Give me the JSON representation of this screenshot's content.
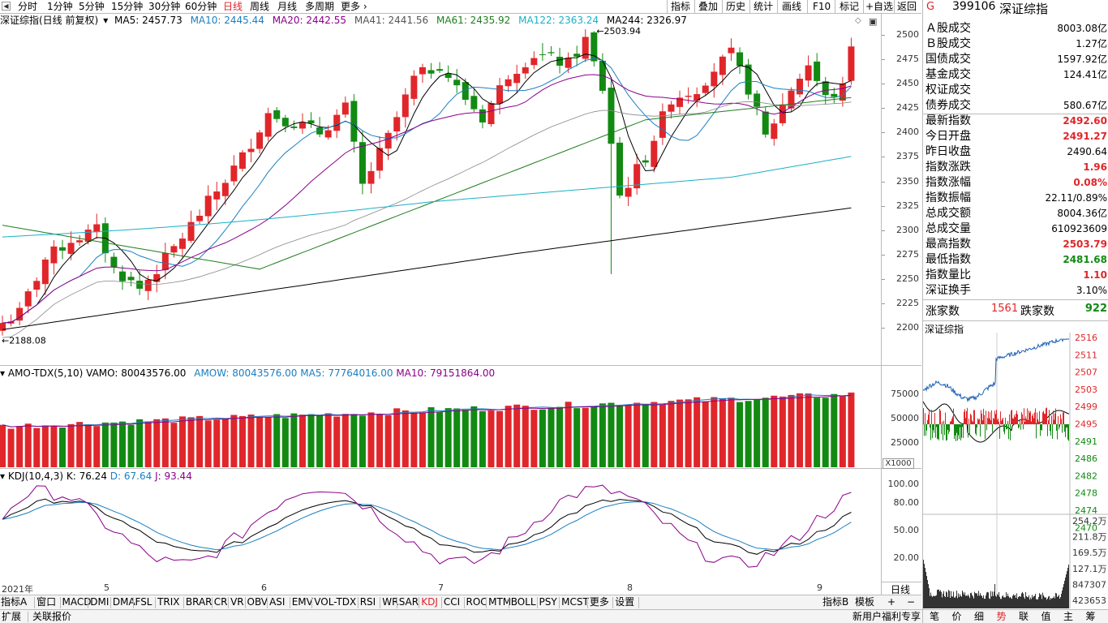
{
  "toolbar": {
    "periods": [
      "分时",
      "1分钟",
      "5分钟",
      "15分钟",
      "30分钟",
      "60分钟",
      "日线",
      "周线",
      "月线",
      "多周期",
      "更多"
    ],
    "active_period": "日线",
    "right_buttons": [
      "指标",
      "叠加",
      "历史",
      "统计",
      "画线",
      "F10",
      "标记",
      "+自选",
      "返回"
    ]
  },
  "legend": {
    "title": "深证综指(日线 前复权)",
    "ma5": "MA5: 2457.73",
    "ma10": "MA10: 2445.44",
    "ma20": "MA20: 2442.55",
    "ma41": "MA41: 2441.56",
    "ma61": "MA61: 2435.92",
    "ma122": "MA122: 2363.24",
    "ma244": "MA244: 2326.97"
  },
  "price_axis": [
    "2500",
    "2475",
    "2450",
    "2425",
    "2400",
    "2375",
    "2350",
    "2325",
    "2300",
    "2275",
    "2250",
    "2225",
    "2200"
  ],
  "annotations": {
    "high": "2503.94",
    "low": "2188.08"
  },
  "volume": {
    "title": "AMO-TDX(5,10)",
    "vamo": "VAMO: 80043576.00",
    "amow": "AMOW: 80043576.00",
    "ma5": "MA5: 77764016.00",
    "ma10": "MA10: 79151864.00",
    "axis": [
      "75000",
      "50000",
      "25000"
    ],
    "unit": "X1000"
  },
  "kdj": {
    "title": "KDJ(10,4,3)",
    "k": "K: 76.24",
    "d": "D: 67.64",
    "j": "J: 93.44",
    "axis": [
      "100.00",
      "80.00",
      "50.00",
      "20.00"
    ]
  },
  "dates": [
    "2021年",
    "5",
    "6",
    "7",
    "8",
    "9"
  ],
  "period_label": "日线",
  "indicator_tabs": [
    "指标A",
    "窗口",
    "MACD",
    "DMI",
    "DMA",
    "FSL",
    "TRIX",
    "BRAR",
    "CR",
    "VR",
    "OBV",
    "ASI",
    "EMV",
    "VOL-TDX",
    "RSI",
    "WR",
    "SAR",
    "KDJ",
    "CCI",
    "ROC",
    "MTM",
    "BOLL",
    "PSY",
    "MCST",
    "更多",
    "设置"
  ],
  "active_tab": "KDJ",
  "tab_right": [
    "指标B",
    "模板",
    "+",
    "−"
  ],
  "status": {
    "left": [
      "扩展",
      "关联报价"
    ],
    "promo": "新用户福利专享",
    "buttons": [
      "笔",
      "价",
      "细",
      "势",
      "联",
      "值",
      "主",
      "筹"
    ],
    "active": "势"
  },
  "quote": {
    "marker": "G",
    "code": "399106",
    "name": "深证综指",
    "rows": [
      {
        "k": "Ａ股成交",
        "v": "8003.08亿",
        "c": "black"
      },
      {
        "k": "Ｂ股成交",
        "v": "1.27亿",
        "c": "black"
      },
      {
        "k": "国债成交",
        "v": "1597.92亿",
        "c": "black"
      },
      {
        "k": "基金成交",
        "v": "124.41亿",
        "c": "black"
      },
      {
        "k": "权证成交",
        "v": "",
        "c": "black"
      },
      {
        "k": "债券成交",
        "v": "580.67亿",
        "c": "black"
      },
      {
        "k": "最新指数",
        "v": "2492.60",
        "c": "red"
      },
      {
        "k": "今日开盘",
        "v": "2491.27",
        "c": "red"
      },
      {
        "k": "昨日收盘",
        "v": "2490.64",
        "c": "black"
      },
      {
        "k": "指数涨跌",
        "v": "1.96",
        "c": "red"
      },
      {
        "k": "指数涨幅",
        "v": "0.08%",
        "c": "red"
      },
      {
        "k": "指数振幅",
        "v": "22.11/0.89%",
        "c": "black"
      },
      {
        "k": "总成交额",
        "v": "8004.36亿",
        "c": "black"
      },
      {
        "k": "总成交量",
        "v": "610923609",
        "c": "black"
      },
      {
        "k": "最高指数",
        "v": "2503.79",
        "c": "red"
      },
      {
        "k": "最低指数",
        "v": "2481.68",
        "c": "green"
      },
      {
        "k": "指数量比",
        "v": "1.10",
        "c": "red"
      },
      {
        "k": "深证换手",
        "v": "3.10%",
        "c": "black"
      }
    ],
    "up_label": "涨家数",
    "up_count": "1561",
    "down_label": "跌家数",
    "down_count": "922"
  },
  "mini": {
    "title": "深证综指",
    "price_axis": [
      "2516",
      "2511",
      "2507",
      "2503",
      "2499",
      "2495",
      "2491",
      "2486",
      "2482",
      "2478",
      "2474",
      "2470"
    ],
    "vol_axis": [
      "254.2万",
      "211.8万",
      "169.5万",
      "127.1万",
      "847307",
      "423653"
    ]
  },
  "colors": {
    "up": "#e0262a",
    "down": "#128a12",
    "ma5": "#000000",
    "ma10": "#1a7fc1",
    "ma20": "#8b008b",
    "ma41": "#888888",
    "ma61": "#1e7d1e",
    "ma122": "#1ab0c8",
    "ma244": "#000000"
  }
}
